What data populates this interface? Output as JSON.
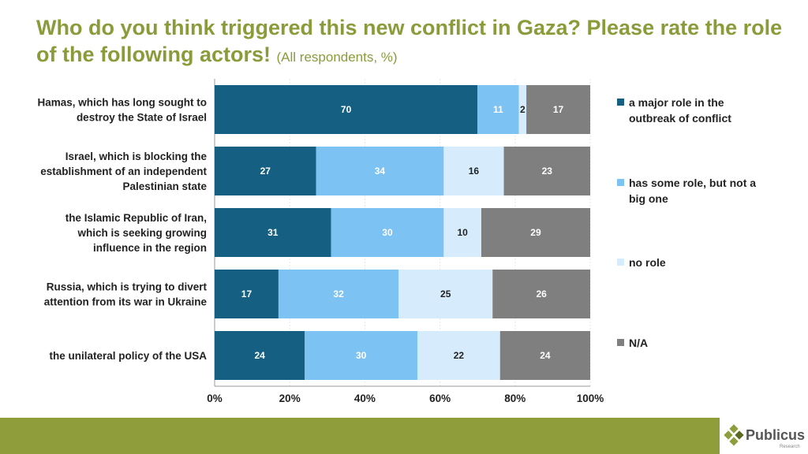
{
  "title": "Who do you think triggered this new conflict in Gaza? Please rate the role of the following actors!",
  "subtitle": "(All respondents, %)",
  "brand": {
    "name": "Publicus",
    "tagline": "Research"
  },
  "colors": {
    "title": "#8a9c3a",
    "footer": "#8f9e3b"
  },
  "chart_data": {
    "type": "bar",
    "orientation": "horizontal-stacked-100",
    "categories": [
      [
        "Hamas, which has long sought to",
        "destroy the State of Israel"
      ],
      [
        "Israel, which is blocking the",
        "establishment of an independent",
        "Palestinian state"
      ],
      [
        "the Islamic Republic of Iran,",
        "which is seeking growing",
        "influence in the region"
      ],
      [
        "Russia, which is trying to divert",
        "attention from its war in Ukraine"
      ],
      [
        "the unilateral policy of the USA"
      ]
    ],
    "series": [
      {
        "name": [
          "a major role in the",
          "outbreak of conflict"
        ],
        "color": "#155f82",
        "label_color": "#ffffff",
        "values": [
          70,
          27,
          31,
          17,
          24
        ]
      },
      {
        "name": [
          "has some role, but not a",
          "big one"
        ],
        "color": "#7cc2f2",
        "label_color": "#ffffff",
        "values": [
          11,
          34,
          30,
          32,
          30
        ]
      },
      {
        "name": [
          "no role"
        ],
        "color": "#d6ebfb",
        "label_color": "#222222",
        "values": [
          2,
          16,
          10,
          25,
          22
        ]
      },
      {
        "name": [
          "N/A"
        ],
        "color": "#7f7f7f",
        "label_color": "#ffffff",
        "values": [
          17,
          23,
          29,
          26,
          24
        ]
      }
    ],
    "xticks": [
      "0%",
      "20%",
      "40%",
      "60%",
      "80%",
      "100%"
    ],
    "xlim": [
      0,
      100
    ],
    "grid": true,
    "legend": "right"
  }
}
